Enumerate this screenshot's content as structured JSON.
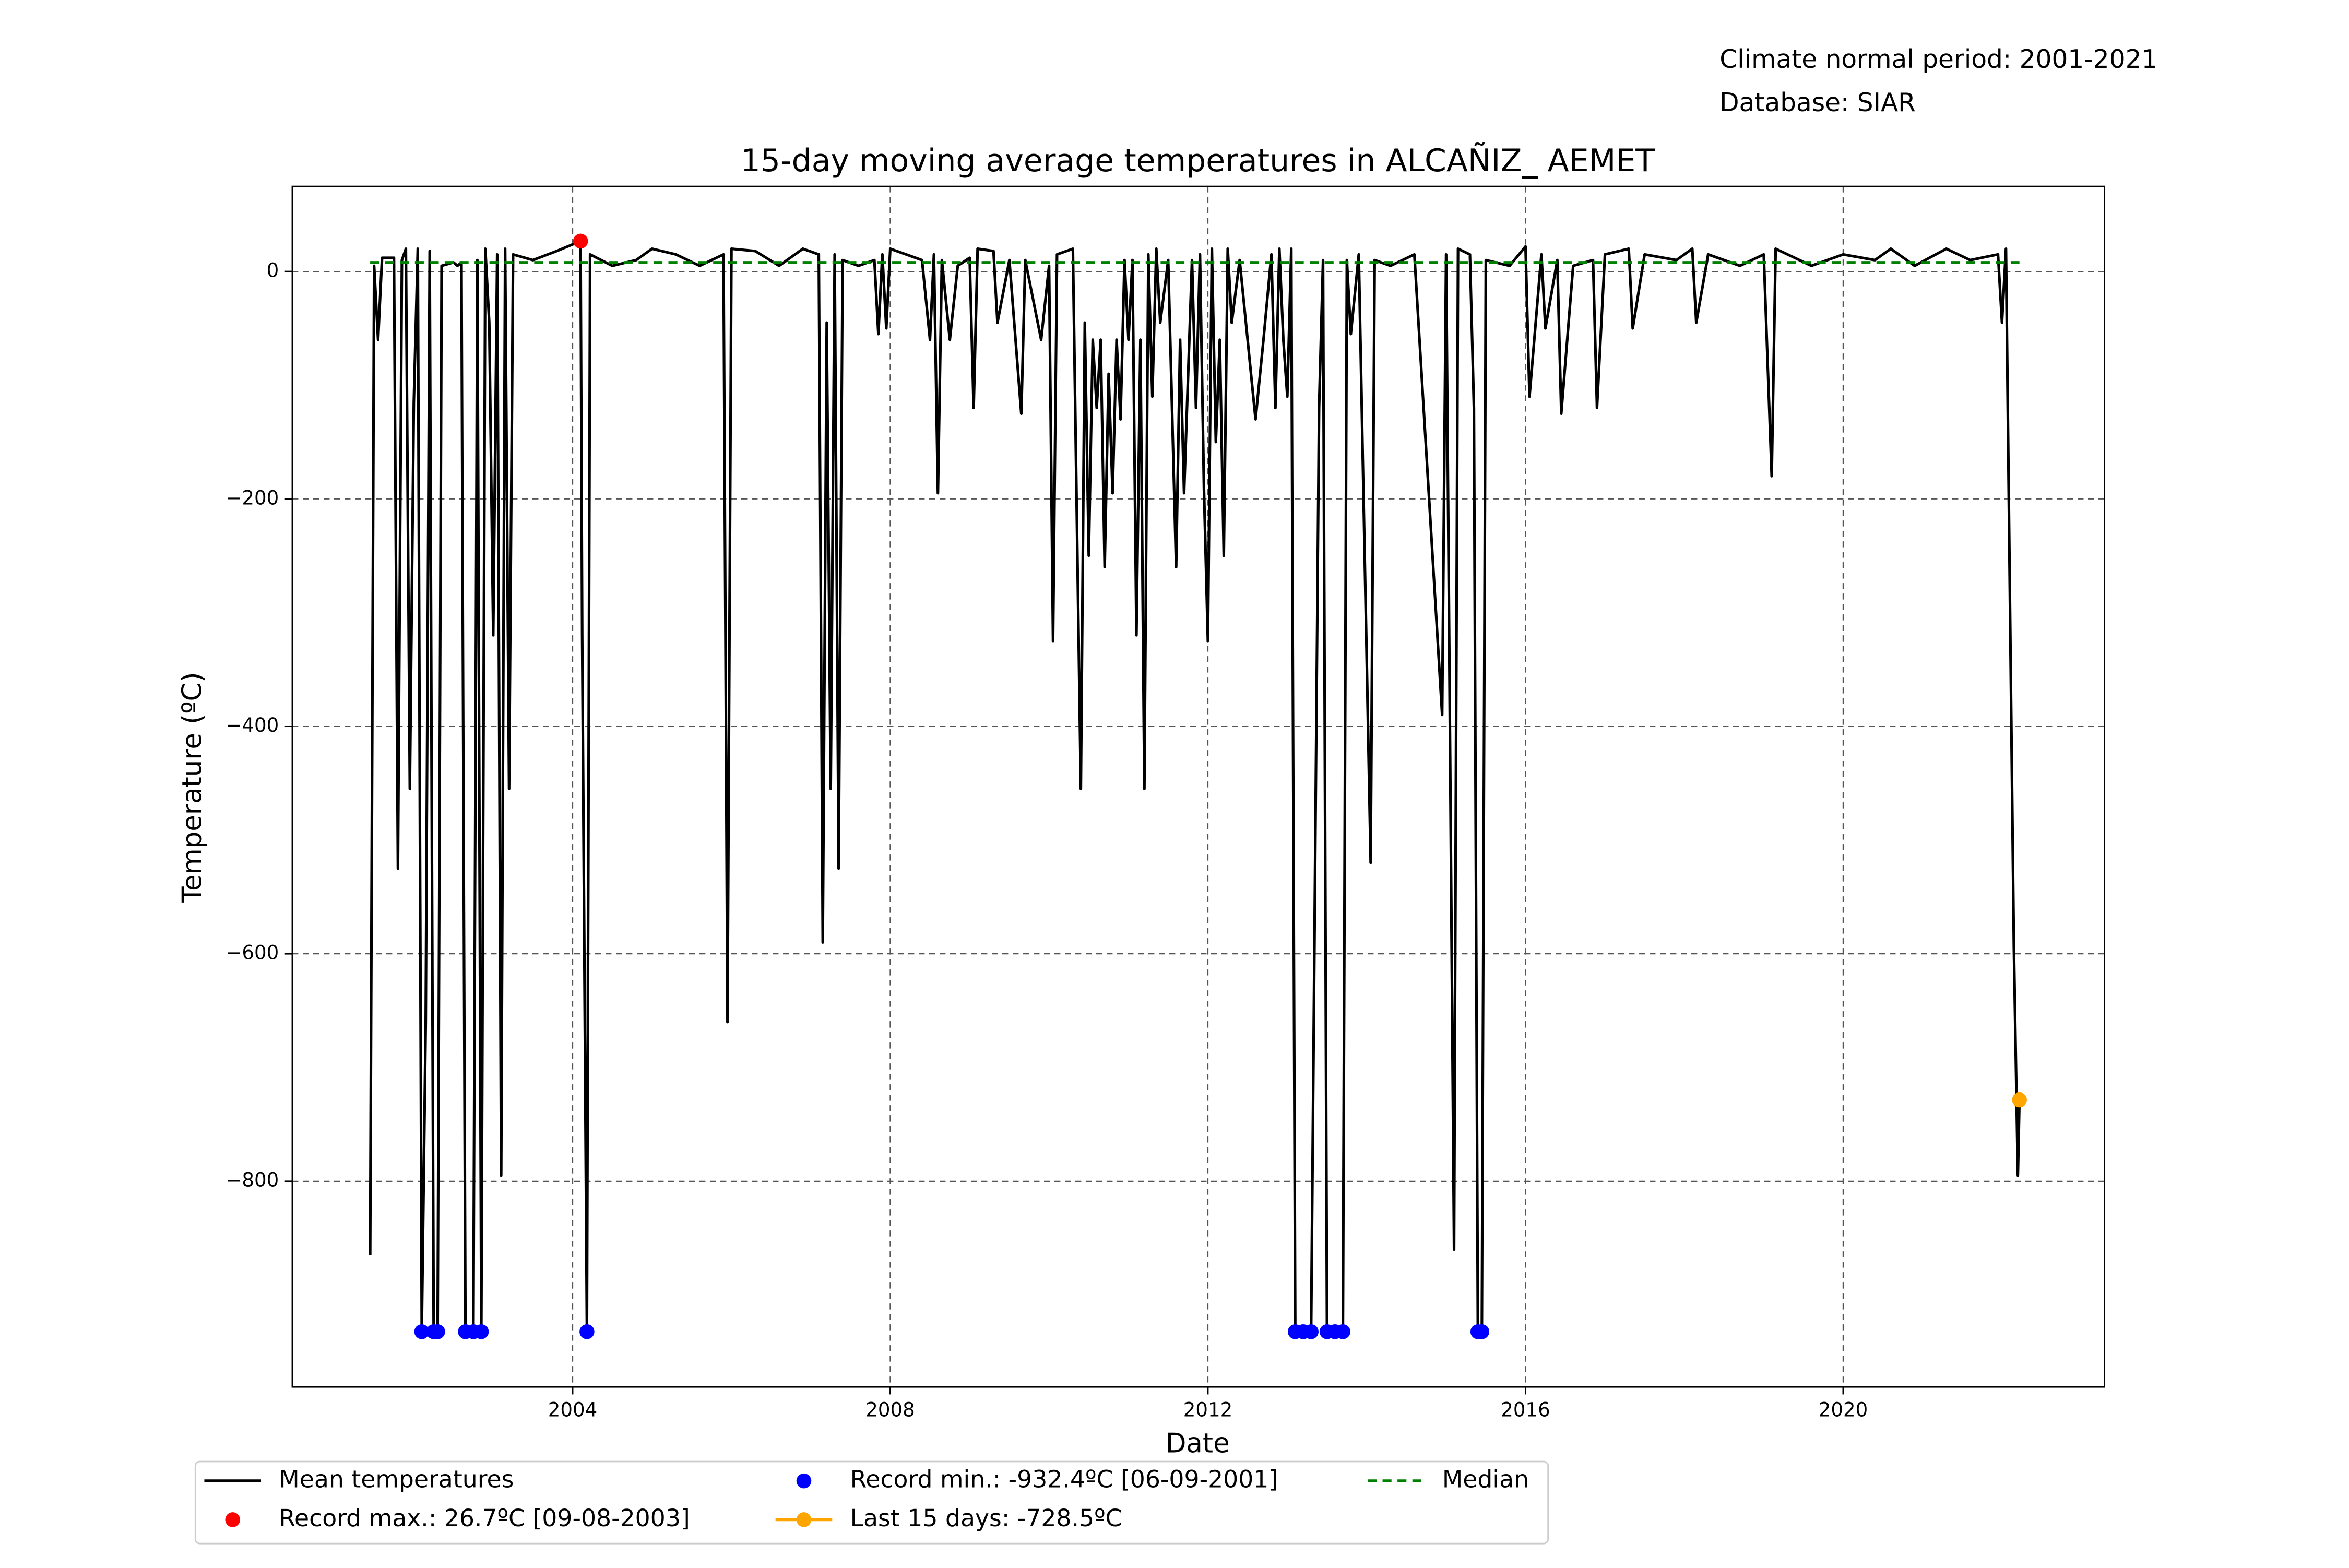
{
  "chart_data": {
    "type": "line",
    "title": "15-day moving average temperatures in ALCAÑIZ_ AEMET",
    "annotations": [
      "Climate normal period: 2001-2021",
      "Database: SIAR"
    ],
    "xlabel": "Date",
    "ylabel": "Temperature (ºC)",
    "xlim": [
      2000.47,
      2023.29
    ],
    "xticks": [
      2004,
      2008,
      2012,
      2016,
      2020
    ],
    "ylim": [
      -981,
      74.8
    ],
    "yticks": [
      {
        "value": -800,
        "label": "−800"
      },
      {
        "value": -600,
        "label": "−600"
      },
      {
        "value": -400,
        "label": "−400"
      },
      {
        "value": -200,
        "label": "−200"
      },
      0
    ],
    "grid": true,
    "legend": "bottom",
    "series": [
      {
        "name": "Mean temperatures",
        "color": "#000000",
        "style": "line",
        "x": [
          2001.45,
          2001.5,
          2001.55,
          2001.6,
          2001.75,
          2001.8,
          2001.85,
          2001.9,
          2001.95,
          2002.0,
          2002.05,
          2002.1,
          2002.15,
          2002.2,
          2002.25,
          2002.3,
          2002.35,
          2002.5,
          2002.55,
          2002.6,
          2002.65,
          2002.75,
          2002.8,
          2002.85,
          2002.9,
          2002.95,
          2003.0,
          2003.05,
          2003.1,
          2003.15,
          2003.2,
          2003.25,
          2003.5,
          2003.8,
          2004.1,
          2004.12,
          2004.18,
          2004.22,
          2004.5,
          2004.8,
          2005.0,
          2005.3,
          2005.6,
          2005.9,
          2005.95,
          2006.0,
          2006.3,
          2006.6,
          2006.9,
          2007.1,
          2007.15,
          2007.2,
          2007.25,
          2007.3,
          2007.35,
          2007.4,
          2007.6,
          2007.8,
          2007.85,
          2007.9,
          2007.95,
          2008.0,
          2008.4,
          2008.5,
          2008.55,
          2008.6,
          2008.65,
          2008.75,
          2008.85,
          2009.0,
          2009.05,
          2009.1,
          2009.3,
          2009.35,
          2009.5,
          2009.65,
          2009.7,
          2009.9,
          2010.0,
          2010.05,
          2010.1,
          2010.3,
          2010.4,
          2010.45,
          2010.5,
          2010.55,
          2010.6,
          2010.65,
          2010.7,
          2010.75,
          2010.8,
          2010.85,
          2010.9,
          2010.95,
          2011.0,
          2011.05,
          2011.1,
          2011.15,
          2011.2,
          2011.25,
          2011.3,
          2011.35,
          2011.4,
          2011.5,
          2011.6,
          2011.65,
          2011.7,
          2011.8,
          2011.85,
          2011.9,
          2011.95,
          2012.0,
          2012.05,
          2012.1,
          2012.15,
          2012.2,
          2012.25,
          2012.3,
          2012.4,
          2012.5,
          2012.6,
          2012.7,
          2012.8,
          2012.85,
          2012.9,
          2012.95,
          2013.0,
          2013.05,
          2013.1,
          2013.2,
          2013.3,
          2013.4,
          2013.45,
          2013.5,
          2013.6,
          2013.7,
          2013.75,
          2013.8,
          2013.9,
          2014.05,
          2014.1,
          2014.3,
          2014.6,
          2014.95,
          2015.0,
          2015.1,
          2015.15,
          2015.3,
          2015.35,
          2015.4,
          2015.45,
          2015.5,
          2015.8,
          2016.0,
          2016.05,
          2016.2,
          2016.25,
          2016.4,
          2016.45,
          2016.6,
          2016.85,
          2016.9,
          2017.0,
          2017.3,
          2017.35,
          2017.5,
          2017.9,
          2018.1,
          2018.15,
          2018.3,
          2018.7,
          2019.0,
          2019.1,
          2019.15,
          2019.6,
          2020.0,
          2020.4,
          2020.6,
          2020.9,
          2021.3,
          2021.6,
          2021.95,
          2022.0,
          2022.05,
          2022.15,
          2022.2,
          2022.22
        ],
        "values": [
          -865,
          5,
          -60,
          12,
          12,
          -525,
          10,
          20,
          -455,
          -115,
          20,
          -932.4,
          -660,
          18,
          -932.4,
          -932.4,
          5,
          8,
          5,
          8,
          -932.4,
          -932.4,
          10,
          -932.4,
          20,
          -45,
          -320,
          15,
          -795,
          20,
          -455,
          15,
          10,
          18,
          26.7,
          -320,
          -932.4,
          15,
          5,
          10,
          20,
          15,
          5,
          15,
          -660,
          20,
          18,
          5,
          20,
          15,
          -590,
          -45,
          -455,
          15,
          -525,
          10,
          5,
          10,
          -55,
          15,
          -50,
          20,
          10,
          -60,
          15,
          -195,
          10,
          -60,
          5,
          12,
          -120,
          20,
          18,
          -45,
          10,
          -125,
          10,
          -60,
          5,
          -325,
          15,
          20,
          -455,
          -45,
          -250,
          -60,
          -120,
          -60,
          -260,
          -90,
          -195,
          -60,
          -130,
          10,
          -60,
          10,
          -320,
          -60,
          -455,
          15,
          -110,
          20,
          -45,
          10,
          -260,
          -60,
          -195,
          10,
          -120,
          15,
          -190,
          -325,
          20,
          -150,
          -60,
          -250,
          20,
          -45,
          10,
          -60,
          -130,
          -60,
          15,
          -120,
          20,
          -60,
          -110,
          20,
          -932.4,
          -932.4,
          -932.4,
          -120,
          10,
          -932.4,
          -932.4,
          -932.4,
          10,
          -55,
          15,
          -520,
          10,
          5,
          15,
          -390,
          15,
          -860,
          20,
          15,
          -120,
          -932.4,
          -932.4,
          10,
          5,
          22,
          -110,
          15,
          -50,
          10,
          -125,
          5,
          10,
          -120,
          15,
          20,
          -50,
          15,
          10,
          20,
          -45,
          15,
          5,
          15,
          -180,
          20,
          5,
          15,
          10,
          20,
          5,
          20,
          10,
          15,
          -45,
          20,
          -595,
          -795,
          -728.5
        ]
      },
      {
        "name": "Record max.: 26.7ºC [09-08-2003]",
        "color": "#ff0000",
        "style": "markers",
        "x": [
          2004.1
        ],
        "values": [
          26.7
        ]
      },
      {
        "name": "Record min.: -932.4ºC [06-09-2001]",
        "color": "#0000ff",
        "style": "markers",
        "x": [
          2002.1,
          2002.25,
          2002.3,
          2002.65,
          2002.75,
          2002.85,
          2004.18,
          2013.1,
          2013.2,
          2013.3,
          2013.5,
          2013.6,
          2013.7,
          2015.4,
          2015.45
        ],
        "values": [
          -932.4,
          -932.4,
          -932.4,
          -932.4,
          -932.4,
          -932.4,
          -932.4,
          -932.4,
          -932.4,
          -932.4,
          -932.4,
          -932.4,
          -932.4,
          -932.4,
          -932.4
        ]
      },
      {
        "name": "Last 15 days: -728.5ºC",
        "color": "#ffa500",
        "style": "line-markers",
        "x": [
          2022.22
        ],
        "values": [
          -728.5
        ]
      },
      {
        "name": "Median",
        "color": "#008000",
        "style": "dashed",
        "x": [
          2001.45,
          2022.22
        ],
        "values": [
          8,
          8
        ]
      }
    ]
  }
}
